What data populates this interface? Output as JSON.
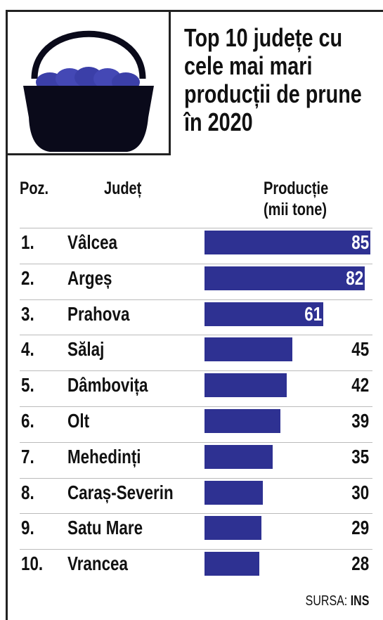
{
  "chart_data": {
    "type": "bar",
    "title": "Top 10 județe cu cele mai mari producții de prune în 2020",
    "header_position": "Poz.",
    "header_county": "Județ",
    "header_value": "Producție",
    "header_unit": "(mii tone)",
    "positions": [
      "1.",
      "2.",
      "3.",
      "4.",
      "5.",
      "6.",
      "7.",
      "8.",
      "9.",
      "10."
    ],
    "categories": [
      "Vâlcea",
      "Argeș",
      "Prahova",
      "Sălaj",
      "Dâmbovița",
      "Olt",
      "Mehedinți",
      "Caraș-Severin",
      "Satu Mare",
      "Vrancea"
    ],
    "values": [
      85,
      82,
      61,
      45,
      42,
      39,
      35,
      30,
      29,
      28
    ],
    "color": "#2e3192",
    "source_label": "SURSA:",
    "source_name": "INS"
  }
}
